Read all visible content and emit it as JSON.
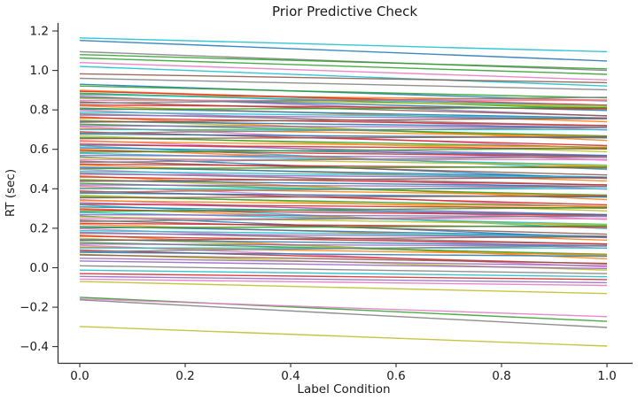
{
  "chart_data": {
    "type": "line",
    "title": "Prior Predictive Check",
    "xlabel": "Label Condition",
    "ylabel": "RT (sec)",
    "x": [
      0,
      1
    ],
    "xlim": [
      -0.05,
      1.05
    ],
    "ylim": [
      -0.48,
      1.24
    ],
    "grid": false,
    "legend": "none",
    "xticks": [
      {
        "v": 0.0,
        "label": "0.0"
      },
      {
        "v": 0.2,
        "label": "0.2"
      },
      {
        "v": 0.4,
        "label": "0.4"
      },
      {
        "v": 0.6,
        "label": "0.6"
      },
      {
        "v": 0.8,
        "label": "0.8"
      },
      {
        "v": 1.0,
        "label": "1.0"
      }
    ],
    "yticks": [
      {
        "v": -0.4,
        "label": "−0.4"
      },
      {
        "v": -0.2,
        "label": "−0.2"
      },
      {
        "v": 0.0,
        "label": "0.0"
      },
      {
        "v": 0.2,
        "label": "0.2"
      },
      {
        "v": 0.4,
        "label": "0.4"
      },
      {
        "v": 0.6,
        "label": "0.6"
      },
      {
        "v": 0.8,
        "label": "0.8"
      },
      {
        "v": 1.0,
        "label": "1.0"
      },
      {
        "v": 1.2,
        "label": "1.2"
      }
    ],
    "palette": [
      "#1f77b4",
      "#ff7f0e",
      "#2ca02c",
      "#d62728",
      "#9467bd",
      "#8c564b",
      "#e377c2",
      "#7f7f7f",
      "#bcbd22",
      "#17becf"
    ],
    "lines": [
      [
        1.165,
        1.095,
        9
      ],
      [
        1.152,
        1.048,
        0
      ],
      [
        1.095,
        1.0,
        7
      ],
      [
        1.08,
        1.008,
        2
      ],
      [
        1.063,
        0.98,
        2
      ],
      [
        1.04,
        0.952,
        6
      ],
      [
        1.02,
        0.921,
        9
      ],
      [
        0.983,
        0.938,
        5
      ],
      [
        0.96,
        0.902,
        7
      ],
      [
        0.93,
        0.845,
        0
      ],
      [
        0.921,
        0.861,
        2
      ],
      [
        0.877,
        0.85,
        1
      ],
      [
        0.9,
        0.81,
        1
      ],
      [
        0.894,
        0.824,
        3
      ],
      [
        0.885,
        0.805,
        2
      ],
      [
        0.88,
        0.82,
        9
      ],
      [
        0.869,
        0.769,
        4
      ],
      [
        0.862,
        0.797,
        0
      ],
      [
        0.858,
        0.818,
        8
      ],
      [
        0.848,
        0.848,
        6
      ],
      [
        0.84,
        0.77,
        5
      ],
      [
        0.834,
        0.864,
        7
      ],
      [
        0.825,
        0.805,
        3
      ],
      [
        0.82,
        0.74,
        1
      ],
      [
        0.809,
        0.759,
        0
      ],
      [
        0.802,
        0.812,
        2
      ],
      [
        0.798,
        0.698,
        6
      ],
      [
        0.788,
        0.758,
        9
      ],
      [
        0.78,
        0.72,
        7
      ],
      [
        0.774,
        0.754,
        4
      ],
      [
        0.765,
        0.645,
        1
      ],
      [
        0.76,
        0.72,
        3
      ],
      [
        0.749,
        0.659,
        8
      ],
      [
        0.742,
        0.712,
        0
      ],
      [
        0.738,
        0.758,
        5
      ],
      [
        0.728,
        0.668,
        2
      ],
      [
        0.72,
        0.71,
        4
      ],
      [
        0.714,
        0.604,
        6
      ],
      [
        0.705,
        0.665,
        1
      ],
      [
        0.7,
        0.7,
        9
      ],
      [
        0.689,
        0.619,
        3
      ],
      [
        0.682,
        0.712,
        7
      ],
      [
        0.678,
        0.658,
        0
      ],
      [
        0.668,
        0.588,
        8
      ],
      [
        0.66,
        0.61,
        2
      ],
      [
        0.654,
        0.664,
        5
      ],
      [
        0.645,
        0.545,
        6
      ],
      [
        0.64,
        0.61,
        1
      ],
      [
        0.629,
        0.569,
        4
      ],
      [
        0.622,
        0.602,
        3
      ],
      [
        0.618,
        0.498,
        9
      ],
      [
        0.608,
        0.568,
        0
      ],
      [
        0.6,
        0.51,
        1
      ],
      [
        0.594,
        0.564,
        3
      ],
      [
        0.585,
        0.605,
        2
      ],
      [
        0.58,
        0.52,
        9
      ],
      [
        0.569,
        0.559,
        4
      ],
      [
        0.562,
        0.452,
        0
      ],
      [
        0.558,
        0.518,
        8
      ],
      [
        0.548,
        0.548,
        6
      ],
      [
        0.54,
        0.47,
        5
      ],
      [
        0.534,
        0.564,
        7
      ],
      [
        0.525,
        0.505,
        3
      ],
      [
        0.52,
        0.44,
        1
      ],
      [
        0.509,
        0.459,
        0
      ],
      [
        0.502,
        0.512,
        2
      ],
      [
        0.498,
        0.398,
        6
      ],
      [
        0.488,
        0.458,
        9
      ],
      [
        0.48,
        0.42,
        7
      ],
      [
        0.474,
        0.454,
        4
      ],
      [
        0.465,
        0.345,
        1
      ],
      [
        0.46,
        0.42,
        3
      ],
      [
        0.449,
        0.359,
        8
      ],
      [
        0.442,
        0.412,
        0
      ],
      [
        0.438,
        0.458,
        5
      ],
      [
        0.428,
        0.368,
        2
      ],
      [
        0.42,
        0.41,
        4
      ],
      [
        0.414,
        0.304,
        6
      ],
      [
        0.405,
        0.365,
        1
      ],
      [
        0.4,
        0.4,
        9
      ],
      [
        0.389,
        0.319,
        3
      ],
      [
        0.382,
        0.412,
        7
      ],
      [
        0.378,
        0.358,
        0
      ],
      [
        0.368,
        0.288,
        8
      ],
      [
        0.36,
        0.31,
        2
      ],
      [
        0.354,
        0.364,
        5
      ],
      [
        0.345,
        0.245,
        6
      ],
      [
        0.34,
        0.31,
        1
      ],
      [
        0.329,
        0.269,
        4
      ],
      [
        0.322,
        0.302,
        3
      ],
      [
        0.318,
        0.198,
        9
      ],
      [
        0.308,
        0.268,
        0
      ],
      [
        0.3,
        0.21,
        1
      ],
      [
        0.294,
        0.264,
        3
      ],
      [
        0.285,
        0.305,
        2
      ],
      [
        0.28,
        0.22,
        9
      ],
      [
        0.269,
        0.259,
        4
      ],
      [
        0.262,
        0.152,
        0
      ],
      [
        0.258,
        0.218,
        8
      ],
      [
        0.248,
        0.248,
        6
      ],
      [
        0.24,
        0.17,
        5
      ],
      [
        0.234,
        0.264,
        7
      ],
      [
        0.225,
        0.205,
        3
      ],
      [
        0.22,
        0.14,
        1
      ],
      [
        0.209,
        0.159,
        0
      ],
      [
        0.202,
        0.212,
        2
      ],
      [
        0.198,
        0.098,
        6
      ],
      [
        0.188,
        0.158,
        9
      ],
      [
        0.18,
        0.12,
        7
      ],
      [
        0.174,
        0.154,
        4
      ],
      [
        0.165,
        0.045,
        1
      ],
      [
        0.16,
        0.12,
        3
      ],
      [
        0.149,
        0.059,
        8
      ],
      [
        0.142,
        0.112,
        0
      ],
      [
        0.138,
        0.158,
        5
      ],
      [
        0.128,
        0.068,
        2
      ],
      [
        0.12,
        0.11,
        4
      ],
      [
        0.114,
        0.004,
        6
      ],
      [
        0.105,
        0.065,
        1
      ],
      [
        0.1,
        0.1,
        9
      ],
      [
        0.089,
        0.019,
        3
      ],
      [
        0.082,
        0.112,
        7
      ],
      [
        0.078,
        0.058,
        0
      ],
      [
        0.068,
        -0.012,
        8
      ],
      [
        0.065,
        0.022,
        5
      ],
      [
        0.048,
        0.01,
        4
      ],
      [
        0.034,
        -0.004,
        4
      ],
      [
        0.01,
        -0.03,
        7
      ],
      [
        -0.012,
        -0.046,
        9
      ],
      [
        -0.03,
        -0.06,
        3
      ],
      [
        -0.044,
        -0.076,
        4
      ],
      [
        -0.058,
        -0.09,
        6
      ],
      [
        -0.07,
        -0.131,
        8
      ],
      [
        -0.15,
        -0.272,
        2
      ],
      [
        -0.158,
        -0.248,
        6
      ],
      [
        -0.163,
        -0.303,
        7
      ],
      [
        -0.298,
        -0.397,
        8
      ]
    ]
  }
}
